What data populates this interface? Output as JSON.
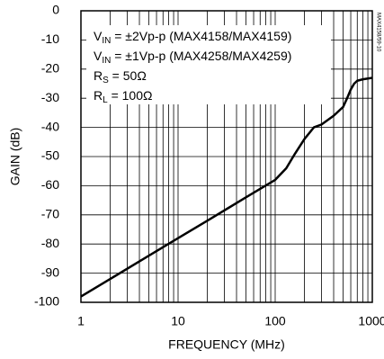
{
  "chart_data": {
    "type": "line",
    "x_label": "FREQUENCY (MHz)",
    "y_label": "GAIN (dB)",
    "side_note": "MAX4158/59-10",
    "annotations": [
      [
        {
          "text": "V"
        },
        {
          "text": "IN",
          "sub": true
        },
        {
          "text": " = ±2Vp-p (MAX4158/MAX4159)"
        }
      ],
      [
        {
          "text": "V"
        },
        {
          "text": "IN",
          "sub": true
        },
        {
          "text": " = ±1Vp-p (MAX4258/MAX4259)"
        }
      ],
      [
        {
          "text": "R"
        },
        {
          "text": "S",
          "sub": true
        },
        {
          "text": " = 50Ω"
        }
      ],
      [
        {
          "text": "R"
        },
        {
          "text": "L",
          "sub": true
        },
        {
          "text": " = 100Ω"
        }
      ]
    ],
    "xscale": "log",
    "grid": true,
    "xlim": [
      1,
      1000
    ],
    "xticks": [
      1,
      10,
      100,
      1000
    ],
    "xminorticks": [
      2,
      3,
      4,
      5,
      6,
      7,
      8,
      9,
      20,
      30,
      40,
      50,
      60,
      70,
      80,
      90,
      200,
      300,
      400,
      500,
      600,
      700,
      800,
      900
    ],
    "ylim": [
      -100,
      0
    ],
    "yticks": [
      0,
      -10,
      -20,
      -30,
      -40,
      -50,
      -60,
      -70,
      -80,
      -90,
      -100
    ],
    "x": [
      1,
      2,
      5,
      10,
      20,
      50,
      100,
      130,
      160,
      200,
      250,
      300,
      400,
      500,
      550,
      600,
      650,
      700,
      800,
      1000
    ],
    "series": [
      {
        "color": "#000000",
        "values": [
          -98,
          -92,
          -84,
          -78,
          -72,
          -64,
          -58,
          -54,
          -49,
          -44,
          -40,
          -39,
          -36,
          -33,
          -30,
          -27,
          -25,
          -24,
          -23.5,
          -23
        ]
      }
    ]
  }
}
